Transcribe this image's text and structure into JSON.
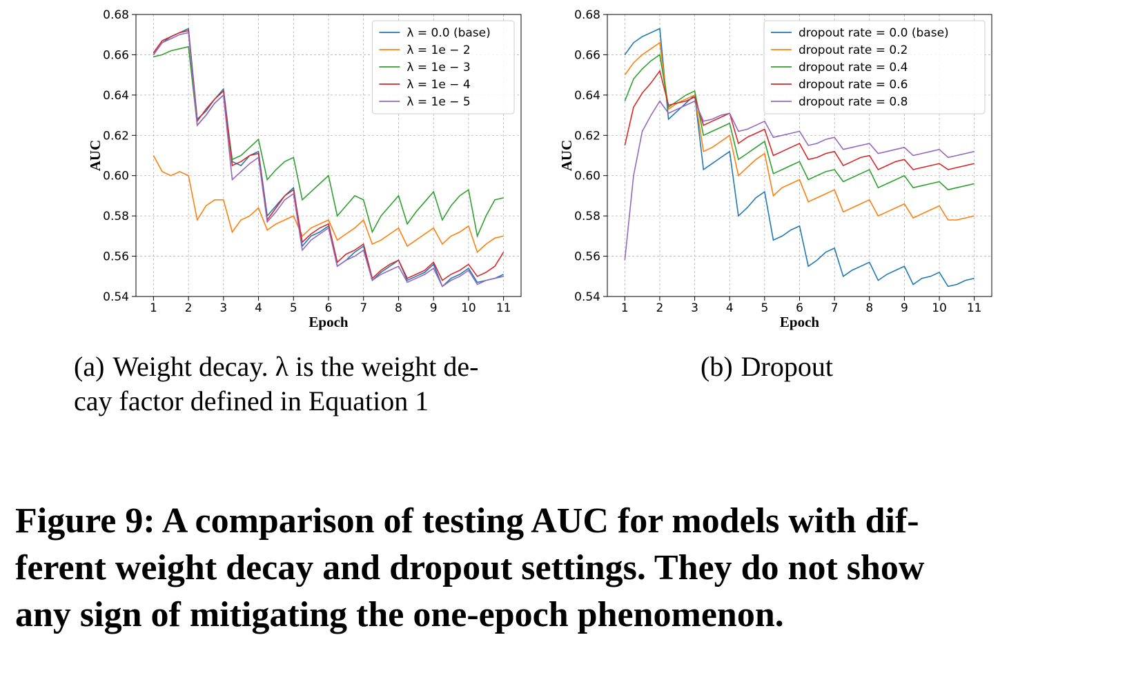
{
  "chart_data": [
    {
      "type": "line",
      "ylabel": "AUC",
      "xlabel": "Epoch",
      "grid": true,
      "legend": "upper right",
      "caption": {
        "label": "(a)",
        "lines": [
          "Weight decay. λ is the weight de-",
          "cay factor defined in Equation 1"
        ]
      },
      "xlim": [
        0.5,
        11.5
      ],
      "xticks": [
        1,
        2,
        3,
        4,
        5,
        6,
        7,
        8,
        9,
        10,
        11
      ],
      "ylim": [
        0.54,
        0.68
      ],
      "yticks": [
        0.54,
        0.56,
        0.58,
        {
          "value": 0.6,
          "label": "0.60"
        },
        0.62,
        0.64,
        0.66,
        0.68
      ],
      "x": [
        1,
        1.25,
        1.5,
        1.75,
        2,
        2.25,
        2.5,
        2.75,
        3,
        3.25,
        3.5,
        3.75,
        4,
        4.25,
        4.5,
        4.75,
        5,
        5.25,
        5.5,
        5.75,
        6,
        6.25,
        6.5,
        6.75,
        7,
        7.25,
        7.5,
        7.75,
        8,
        8.25,
        8.5,
        8.75,
        9,
        9.25,
        9.5,
        9.75,
        10,
        10.25,
        10.5,
        10.75,
        11
      ],
      "series": [
        {
          "name": "λ = 0.0 (base)",
          "color": "#1f77b4",
          "values": [
            0.66,
            0.666,
            0.669,
            0.671,
            0.673,
            0.628,
            0.632,
            0.638,
            0.643,
            0.607,
            0.605,
            0.61,
            0.612,
            0.58,
            0.585,
            0.59,
            0.594,
            0.565,
            0.57,
            0.572,
            0.575,
            0.555,
            0.558,
            0.562,
            0.565,
            0.548,
            0.552,
            0.555,
            0.558,
            0.548,
            0.55,
            0.552,
            0.556,
            0.545,
            0.549,
            0.551,
            0.554,
            0.547,
            0.548,
            0.549,
            0.551
          ]
        },
        {
          "name": "λ = 1e − 2",
          "color": "#ff7f0e",
          "values": [
            0.61,
            0.602,
            0.6,
            0.602,
            0.6,
            0.578,
            0.585,
            0.588,
            0.588,
            0.572,
            0.578,
            0.58,
            0.584,
            0.573,
            0.576,
            0.578,
            0.58,
            0.57,
            0.574,
            0.576,
            0.578,
            0.568,
            0.571,
            0.574,
            0.578,
            0.566,
            0.568,
            0.571,
            0.574,
            0.565,
            0.568,
            0.571,
            0.574,
            0.566,
            0.57,
            0.572,
            0.575,
            0.562,
            0.566,
            0.569,
            0.57
          ]
        },
        {
          "name": "λ = 1e − 3",
          "color": "#2ca02c",
          "values": [
            0.659,
            0.66,
            0.662,
            0.663,
            0.664,
            0.625,
            0.63,
            0.636,
            0.64,
            0.608,
            0.61,
            0.614,
            0.618,
            0.598,
            0.603,
            0.607,
            0.609,
            0.588,
            0.592,
            0.596,
            0.6,
            0.58,
            0.585,
            0.59,
            0.588,
            0.572,
            0.58,
            0.585,
            0.59,
            0.576,
            0.582,
            0.587,
            0.592,
            0.578,
            0.585,
            0.59,
            0.593,
            0.57,
            0.58,
            0.588,
            0.589
          ]
        },
        {
          "name": "λ = 1e − 4",
          "color": "#d62728",
          "values": [
            0.661,
            0.667,
            0.669,
            0.671,
            0.672,
            0.627,
            0.633,
            0.638,
            0.642,
            0.605,
            0.607,
            0.61,
            0.611,
            0.578,
            0.584,
            0.59,
            0.593,
            0.567,
            0.571,
            0.574,
            0.576,
            0.557,
            0.561,
            0.563,
            0.566,
            0.549,
            0.553,
            0.556,
            0.558,
            0.549,
            0.551,
            0.553,
            0.557,
            0.548,
            0.551,
            0.553,
            0.556,
            0.55,
            0.552,
            0.555,
            0.562
          ]
        },
        {
          "name": "λ = 1e − 5",
          "color": "#9467bd",
          "values": [
            0.66,
            0.666,
            0.668,
            0.67,
            0.671,
            0.625,
            0.63,
            0.636,
            0.64,
            0.598,
            0.602,
            0.606,
            0.609,
            0.577,
            0.582,
            0.588,
            0.591,
            0.563,
            0.568,
            0.571,
            0.574,
            0.555,
            0.558,
            0.56,
            0.563,
            0.548,
            0.551,
            0.553,
            0.555,
            0.547,
            0.549,
            0.551,
            0.554,
            0.545,
            0.548,
            0.55,
            0.553,
            0.546,
            0.548,
            0.549,
            0.55
          ]
        }
      ]
    },
    {
      "type": "line",
      "ylabel": "AUC",
      "xlabel": "Epoch",
      "grid": true,
      "legend": "upper right",
      "caption": {
        "label": "(b)",
        "lines": [
          "Dropout"
        ]
      },
      "xlim": [
        0.5,
        11.5
      ],
      "xticks": [
        1,
        2,
        3,
        4,
        5,
        6,
        7,
        8,
        9,
        10,
        11
      ],
      "ylim": [
        0.54,
        0.68
      ],
      "yticks": [
        0.54,
        0.56,
        0.58,
        {
          "value": 0.6,
          "label": "0.60"
        },
        0.62,
        0.64,
        0.66,
        0.68
      ],
      "x": [
        1,
        1.25,
        1.5,
        1.75,
        2,
        2.25,
        2.5,
        2.75,
        3,
        3.25,
        3.5,
        3.75,
        4,
        4.25,
        4.5,
        4.75,
        5,
        5.25,
        5.5,
        5.75,
        6,
        6.25,
        6.5,
        6.75,
        7,
        7.25,
        7.5,
        7.75,
        8,
        8.25,
        8.5,
        8.75,
        9,
        9.25,
        9.5,
        9.75,
        10,
        10.25,
        10.5,
        10.75,
        11
      ],
      "series": [
        {
          "name": "dropout rate = 0.0 (base)",
          "color": "#1f77b4",
          "values": [
            0.66,
            0.666,
            0.669,
            0.671,
            0.673,
            0.628,
            0.632,
            0.636,
            0.64,
            0.603,
            0.606,
            0.609,
            0.612,
            0.58,
            0.584,
            0.589,
            0.592,
            0.568,
            0.57,
            0.573,
            0.575,
            0.555,
            0.558,
            0.562,
            0.564,
            0.55,
            0.553,
            0.555,
            0.557,
            0.548,
            0.551,
            0.553,
            0.555,
            0.546,
            0.549,
            0.55,
            0.552,
            0.545,
            0.546,
            0.548,
            0.549
          ]
        },
        {
          "name": "dropout rate = 0.2",
          "color": "#ff7f0e",
          "values": [
            0.65,
            0.656,
            0.66,
            0.663,
            0.666,
            0.633,
            0.636,
            0.638,
            0.64,
            0.612,
            0.614,
            0.617,
            0.62,
            0.6,
            0.604,
            0.608,
            0.611,
            0.59,
            0.594,
            0.596,
            0.598,
            0.587,
            0.589,
            0.591,
            0.593,
            0.582,
            0.584,
            0.586,
            0.588,
            0.58,
            0.582,
            0.584,
            0.586,
            0.579,
            0.581,
            0.583,
            0.585,
            0.578,
            0.578,
            0.579,
            0.58
          ]
        },
        {
          "name": "dropout rate = 0.4",
          "color": "#2ca02c",
          "values": [
            0.637,
            0.648,
            0.653,
            0.657,
            0.66,
            0.634,
            0.637,
            0.64,
            0.642,
            0.62,
            0.622,
            0.624,
            0.626,
            0.608,
            0.611,
            0.614,
            0.617,
            0.601,
            0.603,
            0.605,
            0.607,
            0.598,
            0.6,
            0.602,
            0.603,
            0.597,
            0.599,
            0.601,
            0.603,
            0.594,
            0.596,
            0.598,
            0.6,
            0.594,
            0.595,
            0.596,
            0.597,
            0.593,
            0.594,
            0.595,
            0.596
          ]
        },
        {
          "name": "dropout rate = 0.6",
          "color": "#d62728",
          "values": [
            0.615,
            0.634,
            0.641,
            0.646,
            0.652,
            0.635,
            0.636,
            0.637,
            0.639,
            0.625,
            0.627,
            0.629,
            0.631,
            0.616,
            0.619,
            0.621,
            0.623,
            0.61,
            0.612,
            0.614,
            0.616,
            0.608,
            0.609,
            0.611,
            0.612,
            0.605,
            0.607,
            0.609,
            0.61,
            0.603,
            0.605,
            0.607,
            0.608,
            0.603,
            0.604,
            0.605,
            0.606,
            0.603,
            0.604,
            0.605,
            0.606
          ]
        },
        {
          "name": "dropout rate = 0.8",
          "color": "#9467bd",
          "values": [
            0.558,
            0.6,
            0.622,
            0.63,
            0.637,
            0.631,
            0.633,
            0.635,
            0.637,
            0.627,
            0.628,
            0.63,
            0.631,
            0.622,
            0.623,
            0.625,
            0.627,
            0.619,
            0.62,
            0.621,
            0.622,
            0.615,
            0.616,
            0.618,
            0.619,
            0.613,
            0.614,
            0.615,
            0.616,
            0.611,
            0.612,
            0.613,
            0.614,
            0.61,
            0.611,
            0.612,
            0.613,
            0.609,
            0.61,
            0.611,
            0.612
          ]
        }
      ]
    }
  ],
  "figure_caption": {
    "lines": [
      "Figure 9: A comparison of testing AUC for models with dif-",
      "ferent weight decay and dropout settings. They do not show",
      "any sign of mitigating the one-epoch phenomenon."
    ]
  }
}
